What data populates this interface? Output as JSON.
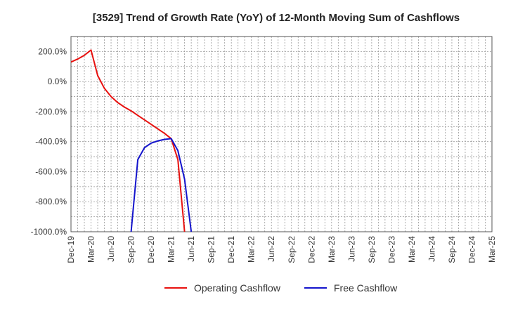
{
  "chart_data": {
    "type": "line",
    "title": "[3529]  Trend of Growth Rate (YoY) of 12-Month Moving Sum of Cashflows",
    "xlabel": "",
    "ylabel": "",
    "ylim": [
      -1000,
      300
    ],
    "y_ticks": [
      200,
      0,
      -200,
      -400,
      -600,
      -800,
      -1000
    ],
    "y_tick_labels": [
      "200.0%",
      "0.0%",
      "-200.0%",
      "-400.0%",
      "-600.0%",
      "-800.0%",
      "-1000.0%"
    ],
    "x_tick_labels": [
      "Dec-19",
      "Mar-20",
      "Jun-20",
      "Sep-20",
      "Dec-20",
      "Mar-21",
      "Jun-21",
      "Sep-21",
      "Dec-21",
      "Mar-22",
      "Jun-22",
      "Sep-22",
      "Dec-22",
      "Mar-23",
      "Jun-23",
      "Sep-23",
      "Dec-23",
      "Mar-24",
      "Jun-24",
      "Sep-24",
      "Dec-24",
      "Mar-25"
    ],
    "grid": true,
    "legend_position": "bottom",
    "series": [
      {
        "name": "Operating Cashflow",
        "color": "#e8110f",
        "points": [
          [
            "2019-12",
            130
          ],
          [
            "2020-01",
            150
          ],
          [
            "2020-02",
            175
          ],
          [
            "2020-03",
            210
          ],
          [
            "2020-04",
            40
          ],
          [
            "2020-05",
            -45
          ],
          [
            "2020-06",
            -100
          ],
          [
            "2020-07",
            -140
          ],
          [
            "2020-08",
            -170
          ],
          [
            "2020-09",
            -195
          ],
          [
            "2020-10",
            -225
          ],
          [
            "2020-11",
            -255
          ],
          [
            "2020-12",
            -285
          ],
          [
            "2021-01",
            -315
          ],
          [
            "2021-02",
            -345
          ],
          [
            "2021-03",
            -380
          ],
          [
            "2021-04",
            -520
          ],
          [
            "2021-05",
            -1000
          ]
        ]
      },
      {
        "name": "Free Cashflow",
        "color": "#1414cc",
        "points": [
          [
            "2020-09",
            -1000
          ],
          [
            "2020-10",
            -520
          ],
          [
            "2020-11",
            -440
          ],
          [
            "2020-12",
            -410
          ],
          [
            "2021-01",
            -395
          ],
          [
            "2021-02",
            -385
          ],
          [
            "2021-03",
            -380
          ],
          [
            "2021-04",
            -460
          ],
          [
            "2021-05",
            -650
          ],
          [
            "2021-06",
            -1000
          ]
        ]
      }
    ]
  }
}
